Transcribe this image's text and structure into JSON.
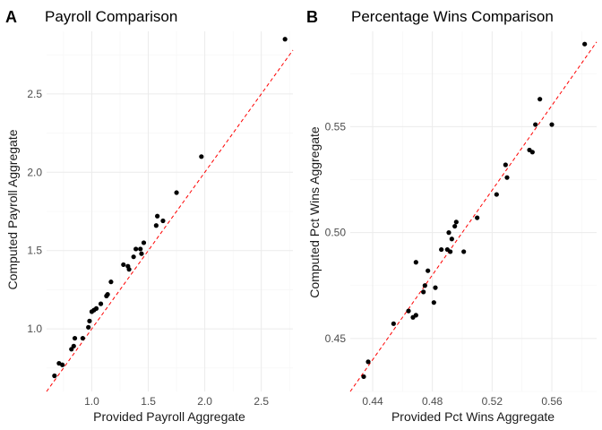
{
  "chart_data": [
    {
      "type": "scatter",
      "panel_label": "A",
      "title": "Payroll Comparison",
      "xlabel": "Provided Payroll Aggregate",
      "ylabel": "Computed Payroll Aggregate",
      "xlim": [
        0.6,
        2.78
      ],
      "ylim": [
        0.6,
        2.9
      ],
      "x_ticks": [
        1.0,
        1.5,
        2.0,
        2.5
      ],
      "x_tick_labels": [
        "1.0",
        "1.5",
        "2.0",
        "2.5"
      ],
      "y_ticks": [
        1.0,
        1.5,
        2.0,
        2.5
      ],
      "y_tick_labels": [
        "1.0",
        "1.5",
        "2.0",
        "2.5"
      ],
      "grid": true,
      "reference_line": {
        "slope": 1,
        "intercept": 0,
        "color": "#ff0000",
        "style": "dashed"
      },
      "point_color": "#000000",
      "points": [
        {
          "x": 0.67,
          "y": 0.7
        },
        {
          "x": 0.71,
          "y": 0.78
        },
        {
          "x": 0.74,
          "y": 0.77
        },
        {
          "x": 0.82,
          "y": 0.87
        },
        {
          "x": 0.84,
          "y": 0.89
        },
        {
          "x": 0.85,
          "y": 0.94
        },
        {
          "x": 0.92,
          "y": 0.94
        },
        {
          "x": 0.97,
          "y": 1.01
        },
        {
          "x": 0.98,
          "y": 1.05
        },
        {
          "x": 1.0,
          "y": 1.11
        },
        {
          "x": 1.02,
          "y": 1.12
        },
        {
          "x": 1.04,
          "y": 1.13
        },
        {
          "x": 1.08,
          "y": 1.16
        },
        {
          "x": 1.13,
          "y": 1.21
        },
        {
          "x": 1.14,
          "y": 1.22
        },
        {
          "x": 1.17,
          "y": 1.3
        },
        {
          "x": 1.28,
          "y": 1.41
        },
        {
          "x": 1.32,
          "y": 1.4
        },
        {
          "x": 1.33,
          "y": 1.38
        },
        {
          "x": 1.37,
          "y": 1.46
        },
        {
          "x": 1.39,
          "y": 1.51
        },
        {
          "x": 1.43,
          "y": 1.51
        },
        {
          "x": 1.44,
          "y": 1.48
        },
        {
          "x": 1.46,
          "y": 1.55
        },
        {
          "x": 1.57,
          "y": 1.66
        },
        {
          "x": 1.58,
          "y": 1.72
        },
        {
          "x": 1.63,
          "y": 1.69
        },
        {
          "x": 1.75,
          "y": 1.87
        },
        {
          "x": 1.97,
          "y": 2.1
        },
        {
          "x": 2.71,
          "y": 2.85
        }
      ]
    },
    {
      "type": "scatter",
      "panel_label": "B",
      "title": "Percentage Wins Comparison",
      "xlabel": "Provided Pct Wins Aggregate",
      "ylabel": "Computed Pct Wins Aggregate",
      "xlim": [
        0.425,
        0.59
      ],
      "ylim": [
        0.425,
        0.595
      ],
      "x_ticks": [
        0.44,
        0.48,
        0.52,
        0.56
      ],
      "x_tick_labels": [
        "0.44",
        "0.48",
        "0.52",
        "0.56"
      ],
      "y_ticks": [
        0.45,
        0.5,
        0.55
      ],
      "y_tick_labels": [
        "0.45",
        "0.50",
        "0.55"
      ],
      "grid": true,
      "reference_line": {
        "slope": 1,
        "intercept": 0,
        "color": "#ff0000",
        "style": "dashed"
      },
      "point_color": "#000000",
      "points": [
        {
          "x": 0.434,
          "y": 0.432
        },
        {
          "x": 0.437,
          "y": 0.439
        },
        {
          "x": 0.454,
          "y": 0.457
        },
        {
          "x": 0.464,
          "y": 0.463
        },
        {
          "x": 0.467,
          "y": 0.46
        },
        {
          "x": 0.469,
          "y": 0.461
        },
        {
          "x": 0.469,
          "y": 0.486
        },
        {
          "x": 0.474,
          "y": 0.472
        },
        {
          "x": 0.475,
          "y": 0.475
        },
        {
          "x": 0.477,
          "y": 0.482
        },
        {
          "x": 0.481,
          "y": 0.467
        },
        {
          "x": 0.482,
          "y": 0.474
        },
        {
          "x": 0.486,
          "y": 0.492
        },
        {
          "x": 0.49,
          "y": 0.492
        },
        {
          "x": 0.491,
          "y": 0.5
        },
        {
          "x": 0.492,
          "y": 0.491
        },
        {
          "x": 0.493,
          "y": 0.497
        },
        {
          "x": 0.495,
          "y": 0.503
        },
        {
          "x": 0.496,
          "y": 0.505
        },
        {
          "x": 0.501,
          "y": 0.491
        },
        {
          "x": 0.51,
          "y": 0.507
        },
        {
          "x": 0.523,
          "y": 0.518
        },
        {
          "x": 0.529,
          "y": 0.532
        },
        {
          "x": 0.53,
          "y": 0.526
        },
        {
          "x": 0.545,
          "y": 0.539
        },
        {
          "x": 0.547,
          "y": 0.538
        },
        {
          "x": 0.549,
          "y": 0.551
        },
        {
          "x": 0.552,
          "y": 0.563
        },
        {
          "x": 0.56,
          "y": 0.551
        },
        {
          "x": 0.582,
          "y": 0.589
        }
      ]
    }
  ]
}
